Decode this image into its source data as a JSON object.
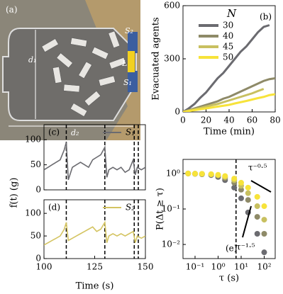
{
  "photo": {
    "label": "(a)",
    "labels": [
      "d₁",
      "d₂",
      "L",
      "S₂",
      "S₁"
    ]
  },
  "chart_data": [
    {
      "type": "line",
      "label": "(b)",
      "xlabel": "Time (min)",
      "ylabel": "Evacuated agents",
      "xlim": [
        0,
        80
      ],
      "ylim": [
        0,
        600
      ],
      "xticks": [
        0,
        20,
        40,
        60,
        80
      ],
      "yticks": [
        0,
        300,
        600
      ],
      "legend_title": "N",
      "series": [
        {
          "name": "30",
          "color": "#6b6b70",
          "x": [
            0,
            5,
            10,
            15,
            20,
            25,
            30,
            35,
            40,
            45,
            50,
            55,
            60,
            65,
            70,
            75
          ],
          "values": [
            0,
            20,
            45,
            80,
            110,
            150,
            190,
            220,
            260,
            300,
            340,
            370,
            410,
            450,
            480,
            490
          ]
        },
        {
          "name": "40",
          "color": "#8e8a68",
          "x": [
            0,
            5,
            10,
            15,
            20,
            25,
            30,
            35,
            40,
            45,
            50,
            55,
            60,
            65,
            70,
            75,
            80
          ],
          "values": [
            0,
            10,
            20,
            30,
            40,
            50,
            60,
            75,
            85,
            100,
            115,
            130,
            145,
            160,
            175,
            185,
            190
          ]
        },
        {
          "name": "45",
          "color": "#c8c060",
          "x": [
            0,
            5,
            10,
            15,
            20,
            25,
            30,
            35,
            40,
            45,
            50,
            55,
            60,
            65,
            70
          ],
          "values": [
            0,
            8,
            15,
            22,
            30,
            38,
            45,
            55,
            65,
            75,
            85,
            95,
            105,
            118,
            130
          ]
        },
        {
          "name": "50",
          "color": "#f7e33a",
          "x": [
            0,
            5,
            10,
            15,
            20,
            25,
            30,
            35,
            40,
            45,
            50,
            55,
            60,
            65,
            70,
            75,
            80
          ],
          "values": [
            0,
            5,
            10,
            15,
            20,
            25,
            30,
            35,
            40,
            48,
            55,
            62,
            70,
            78,
            85,
            95,
            100
          ]
        }
      ]
    },
    {
      "type": "line",
      "label": "(c)",
      "ylabel": "f(t) (g)",
      "xlim": [
        100,
        150
      ],
      "ylim": [
        0,
        130
      ],
      "yticks": [
        0,
        50,
        100
      ],
      "vlines": [
        111,
        130,
        144.5,
        146.5
      ],
      "x": [
        100,
        102,
        104,
        106,
        108,
        110,
        111,
        112,
        114,
        116,
        118,
        120,
        122,
        124,
        126,
        128,
        130,
        131,
        132,
        134,
        136,
        138,
        140,
        142,
        144,
        145,
        146,
        148,
        150
      ],
      "series": [
        {
          "name": "S₁",
          "color": "#6b6b70",
          "values": [
            40,
            45,
            50,
            55,
            60,
            80,
            95,
            20,
            45,
            50,
            55,
            50,
            45,
            60,
            65,
            70,
            85,
            25,
            40,
            45,
            40,
            45,
            35,
            40,
            60,
            30,
            45,
            40,
            45
          ]
        }
      ]
    },
    {
      "type": "line",
      "label": "(d)",
      "xlabel": "Time (s)",
      "xlim": [
        100,
        150
      ],
      "ylim": [
        0,
        130
      ],
      "xticks": [
        100,
        125,
        150
      ],
      "yticks": [
        0,
        50,
        100
      ],
      "vlines": [
        111,
        130,
        144.5,
        146.5
      ],
      "x": [
        100,
        102,
        104,
        106,
        108,
        110,
        111,
        112,
        114,
        116,
        118,
        120,
        122,
        124,
        126,
        128,
        130,
        131,
        132,
        134,
        136,
        138,
        140,
        142,
        144,
        145,
        146,
        148,
        150
      ],
      "series": [
        {
          "name": "S₂",
          "color": "#d4c462",
          "values": [
            30,
            35,
            40,
            45,
            50,
            65,
            80,
            40,
            45,
            50,
            55,
            60,
            65,
            70,
            60,
            65,
            80,
            35,
            50,
            55,
            50,
            55,
            50,
            55,
            60,
            35,
            50,
            45,
            50
          ]
        }
      ]
    },
    {
      "type": "scatter",
      "label": "(e)",
      "xlabel": "τ (s)",
      "ylabel": "P(Δt ≥ τ)",
      "xscale": "log",
      "yscale": "log",
      "xlim": [
        0.03,
        300
      ],
      "ylim": [
        0.004,
        2.5
      ],
      "xticks": [
        {
          "value": 0.1,
          "label": "10⁻¹"
        },
        {
          "value": 1,
          "label": "10⁰"
        },
        {
          "value": 10,
          "label": "10¹"
        },
        {
          "value": 100,
          "label": "10²"
        }
      ],
      "yticks": [
        {
          "value": 0.01,
          "label": "10⁻²"
        },
        {
          "value": 0.1,
          "label": "10⁻¹"
        },
        {
          "value": 1,
          "label": "10⁰"
        }
      ],
      "vlines": [
        6
      ],
      "annotations": [
        "τ⁻⁰·⁵",
        "τ⁻¹·⁵"
      ],
      "x": [
        0.05,
        0.1,
        0.2,
        0.5,
        1,
        2,
        5,
        10,
        20,
        50,
        100
      ],
      "series": [
        {
          "name": "30",
          "color": "#6b6b70",
          "values": [
            1,
            0.98,
            0.95,
            0.9,
            0.8,
            0.65,
            0.4,
            0.2,
            0.08,
            0.02,
            0.006
          ]
        },
        {
          "name": "40",
          "color": "#8e8a68",
          "values": [
            1,
            0.99,
            0.97,
            0.93,
            0.86,
            0.74,
            0.55,
            0.35,
            0.18,
            0.06,
            0.02
          ]
        },
        {
          "name": "45",
          "color": "#c8c060",
          "values": [
            1,
            0.99,
            0.98,
            0.95,
            0.9,
            0.8,
            0.65,
            0.45,
            0.28,
            0.12,
            0.05
          ]
        },
        {
          "name": "50",
          "color": "#f7e33a",
          "values": [
            1,
            0.99,
            0.98,
            0.96,
            0.92,
            0.85,
            0.72,
            0.55,
            0.4,
            0.22,
            0.12
          ]
        }
      ]
    }
  ]
}
